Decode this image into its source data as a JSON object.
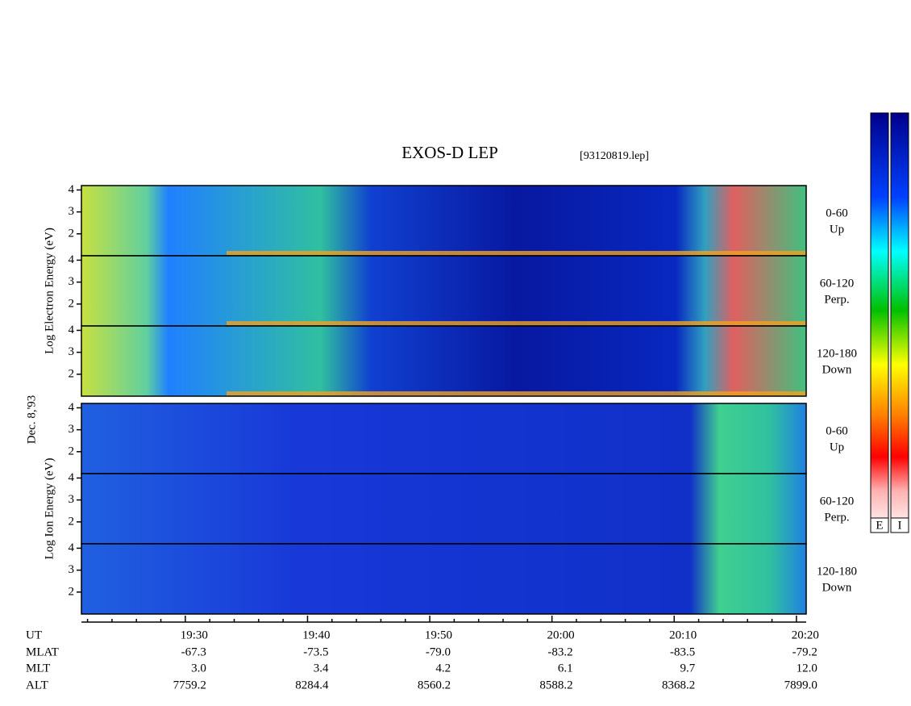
{
  "chart_data": {
    "type": "spectrogram",
    "title": "EXOS-D LEP",
    "subtitle": "[93120819.lep]",
    "date_label": "Dec. 8,'93",
    "groups": [
      {
        "label": "Log Electron Energy (eV)",
        "panels": [
          {
            "angle": "0-60",
            "direction": "Up"
          },
          {
            "angle": "60-120",
            "direction": "Perp."
          },
          {
            "angle": "120-180",
            "direction": "Down"
          }
        ]
      },
      {
        "label": "Log Ion Energy (eV)",
        "panels": [
          {
            "angle": "0-60",
            "direction": "Up"
          },
          {
            "angle": "60-120",
            "direction": "Perp."
          },
          {
            "angle": "120-180",
            "direction": "Down"
          }
        ]
      }
    ],
    "ylim": [
      1,
      4.2
    ],
    "yticks": [
      2,
      3,
      4
    ],
    "xlim": [
      1161.5,
      1220.8
    ],
    "xticks": [
      {
        "value": 1170,
        "label": "19:30"
      },
      {
        "value": 1180,
        "label": "19:40"
      },
      {
        "value": 1190,
        "label": "19:50"
      },
      {
        "value": 1200,
        "label": "20:00"
      },
      {
        "value": 1210,
        "label": "20:10"
      },
      {
        "value": 1220,
        "label": "20:20"
      }
    ],
    "minor_xticks": [
      1162,
      1164,
      1166,
      1168,
      1172,
      1174,
      1176,
      1178,
      1182,
      1184,
      1186,
      1188,
      1192,
      1194,
      1196,
      1198,
      1202,
      1204,
      1206,
      1208,
      1212,
      1214,
      1216,
      1218
    ],
    "x_row_label": "UT",
    "ephemeris": [
      {
        "name": "MLAT",
        "labels": [
          "-67.3",
          "-73.5",
          "-79.0",
          "-83.2",
          "-83.5",
          "-79.2"
        ]
      },
      {
        "name": "MLT",
        "labels": [
          "3.0",
          "3.4",
          "4.2",
          "6.1",
          "9.7",
          "12.0"
        ]
      },
      {
        "name": "ALT",
        "labels": [
          "7759.2",
          "8284.4",
          "8560.2",
          "8588.2",
          "8368.2",
          "7899.0"
        ]
      }
    ],
    "colorbars": [
      "E",
      "I"
    ]
  }
}
